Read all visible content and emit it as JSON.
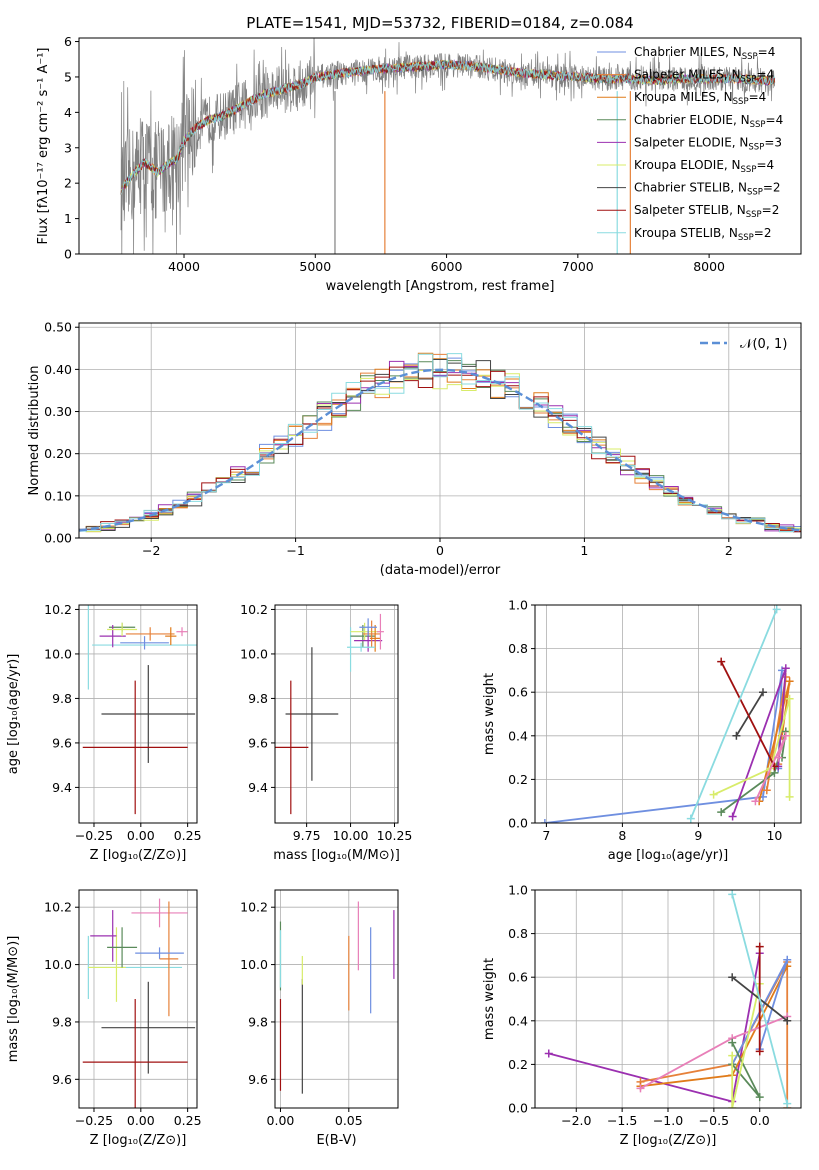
{
  "figure_title": "PLATE=1541, MJD=53732, FIBERID=0184, z=0.084",
  "colors": {
    "chabrier_miles": "#6f8fe0",
    "salpeter_miles": "#e6813a",
    "kroupa_miles": "#e07b1a",
    "chabrier_elodie": "#5a8a5a",
    "salpeter_elodie": "#9b30b0",
    "kroupa_elodie": "#d8ec6a",
    "chabrier_stelib": "#444444",
    "salpeter_stelib": "#a01010",
    "kroupa_stelib": "#8adbe0",
    "data_grey": "#808080",
    "pink": "#e87fb8",
    "normal_dashed": "#5b8fd6",
    "grid": "#b0b0b0"
  },
  "chart_data": [
    {
      "id": "spectrum",
      "type": "line",
      "title": "PLATE=1541, MJD=53732, FIBERID=0184, z=0.084",
      "xlabel": "wavelength [Angstrom, rest frame]",
      "ylabel": "Flux [fλ10⁻¹⁷ erg cm⁻² s⁻¹ A⁻¹]",
      "xlim": [
        3200,
        8700
      ],
      "ylim": [
        0,
        6.1
      ],
      "xticks": [
        4000,
        5000,
        6000,
        7000,
        8000
      ],
      "yticks": [
        0,
        1,
        2,
        3,
        4,
        5,
        6
      ],
      "grid": false,
      "legend_position": "top-right",
      "data_range": [
        3520,
        8500
      ],
      "model_shape": {
        "x": [
          3520,
          3600,
          3700,
          3800,
          3900,
          3950,
          4000,
          4100,
          4200,
          4300,
          4400,
          4500,
          4600,
          4700,
          4800,
          4900,
          5000,
          5200,
          5400,
          5600,
          5800,
          6000,
          6200,
          6400,
          6600,
          6800,
          7000,
          7200,
          7400,
          7600,
          7800,
          8000,
          8200,
          8400,
          8500
        ],
        "y": [
          1.8,
          2.2,
          2.6,
          2.3,
          2.6,
          2.7,
          3.2,
          3.6,
          3.8,
          3.9,
          4.1,
          4.3,
          4.5,
          4.6,
          4.7,
          4.8,
          5.0,
          5.1,
          5.2,
          5.25,
          5.3,
          5.35,
          5.3,
          5.2,
          5.1,
          5.05,
          5.0,
          4.95,
          4.95,
          4.9,
          4.95,
          4.95,
          4.95,
          4.9,
          4.9
        ]
      },
      "series": [
        {
          "name": "Chabrier MILES, N",
          "sub": "SSP",
          "suffix": "=4",
          "color_key": "chabrier_miles"
        },
        {
          "name": "Salpeter MILES, N",
          "sub": "SSP",
          "suffix": "=4",
          "color_key": "salpeter_miles"
        },
        {
          "name": "Kroupa MILES, N",
          "sub": "SSP",
          "suffix": "=4",
          "color_key": "kroupa_miles"
        },
        {
          "name": "Chabrier ELODIE, N",
          "sub": "SSP",
          "suffix": "=4",
          "color_key": "chabrier_elodie"
        },
        {
          "name": "Salpeter ELODIE, N",
          "sub": "SSP",
          "suffix": "=3",
          "color_key": "salpeter_elodie"
        },
        {
          "name": "Kroupa ELODIE, N",
          "sub": "SSP",
          "suffix": "=4",
          "color_key": "kroupa_elodie"
        },
        {
          "name": "Chabrier STELIB, N",
          "sub": "SSP",
          "suffix": "=2",
          "color_key": "chabrier_stelib"
        },
        {
          "name": "Salpeter STELIB, N",
          "sub": "SSP",
          "suffix": "=2",
          "color_key": "salpeter_stelib"
        },
        {
          "name": "Kroupa STELIB, N",
          "sub": "SSP",
          "suffix": "=2",
          "color_key": "kroupa_stelib"
        }
      ]
    },
    {
      "id": "residuals",
      "type": "line",
      "xlabel": "(data-model)/error",
      "ylabel": "Normed distribution",
      "xlim": [
        -2.5,
        2.5
      ],
      "ylim": [
        0,
        0.51
      ],
      "xticks": [
        -2,
        -1,
        0,
        1,
        2
      ],
      "yticks": [
        0.0,
        0.1,
        0.2,
        0.3,
        0.4,
        0.5
      ],
      "grid": true,
      "legend_position": "top-right",
      "legend_label": "𝒩(0, 1)",
      "normal": {
        "mean": 0,
        "sigma": 1
      }
    },
    {
      "id": "age_vs_Z",
      "type": "scatter",
      "xlabel": "Z [log₁₀(Z/Z⊙)]",
      "ylabel": "age  [log₁₀(age/yr)]",
      "xlim": [
        -0.33,
        0.3
      ],
      "ylim": [
        9.24,
        10.22
      ],
      "xticks": [
        -0.25,
        0.0,
        0.25
      ],
      "yticks": [
        9.4,
        9.6,
        9.8,
        10.0,
        10.2
      ],
      "grid": true,
      "points": [
        {
          "x": -0.28,
          "y": 10.04,
          "xerr": 0.0,
          "yerr": 0.2,
          "color_key": "kroupa_stelib"
        },
        {
          "x": 0.04,
          "y": 10.04,
          "xerr": 0.3,
          "yerr": 0.0,
          "color_key": "kroupa_stelib"
        },
        {
          "x": -0.1,
          "y": 10.12,
          "xerr": 0.07,
          "yerr": 0.02,
          "color_key": "chabrier_elodie"
        },
        {
          "x": -0.15,
          "y": 10.08,
          "xerr": 0.07,
          "yerr": 0.05,
          "color_key": "salpeter_elodie"
        },
        {
          "x": -0.1,
          "y": 10.11,
          "xerr": 0.08,
          "yerr": 0.03,
          "color_key": "kroupa_elodie"
        },
        {
          "x": 0.05,
          "y": 10.09,
          "xerr": 0.13,
          "yerr": 0.03,
          "color_key": "salpeter_miles"
        },
        {
          "x": 0.16,
          "y": 10.08,
          "xerr": 0.03,
          "yerr": 0.04,
          "color_key": "kroupa_miles"
        },
        {
          "x": 0.02,
          "y": 10.05,
          "xerr": 0.13,
          "yerr": 0.03,
          "color_key": "chabrier_miles"
        },
        {
          "x": 0.22,
          "y": 10.1,
          "xerr": 0.03,
          "yerr": 0.02,
          "color_key": "pink"
        },
        {
          "x": 0.04,
          "y": 9.73,
          "xerr": 0.25,
          "yerr": 0.22,
          "color_key": "chabrier_stelib"
        },
        {
          "x": -0.03,
          "y": 9.58,
          "xerr": 0.28,
          "yerr": 0.3,
          "color_key": "salpeter_stelib"
        }
      ]
    },
    {
      "id": "age_vs_mass",
      "type": "scatter",
      "xlabel": "mass [log₁₀(M/M⊙)]",
      "ylabel": "",
      "xlim": [
        9.57,
        10.27
      ],
      "ylim": [
        9.24,
        10.22
      ],
      "xticks": [
        9.75,
        10.0,
        10.25
      ],
      "yticks": [
        9.4,
        9.6,
        9.8,
        10.0,
        10.2
      ],
      "grid": true,
      "points": [
        {
          "x": 10.0,
          "y": 10.02,
          "xerr": 0.0,
          "yerr": 0.1,
          "color_key": "kroupa_stelib"
        },
        {
          "x": 10.07,
          "y": 10.08,
          "xerr": 0.07,
          "yerr": 0.05,
          "color_key": "chabrier_elodie"
        },
        {
          "x": 10.08,
          "y": 10.1,
          "xerr": 0.08,
          "yerr": 0.04,
          "color_key": "kroupa_elodie"
        },
        {
          "x": 10.1,
          "y": 10.06,
          "xerr": 0.08,
          "yerr": 0.05,
          "color_key": "salpeter_elodie"
        },
        {
          "x": 10.12,
          "y": 10.09,
          "xerr": 0.05,
          "yerr": 0.06,
          "color_key": "salpeter_miles"
        },
        {
          "x": 10.14,
          "y": 10.07,
          "xerr": 0.03,
          "yerr": 0.06,
          "color_key": "kroupa_miles"
        },
        {
          "x": 10.1,
          "y": 10.12,
          "xerr": 0.05,
          "yerr": 0.04,
          "color_key": "chabrier_miles"
        },
        {
          "x": 10.17,
          "y": 10.1,
          "xerr": 0.02,
          "yerr": 0.08,
          "color_key": "pink"
        },
        {
          "x": 9.78,
          "y": 9.73,
          "xerr": 0.15,
          "yerr": 0.3,
          "color_key": "chabrier_stelib"
        },
        {
          "x": 9.66,
          "y": 9.58,
          "xerr": 0.1,
          "yerr": 0.3,
          "color_key": "salpeter_stelib"
        },
        {
          "x": 10.06,
          "y": 10.03,
          "xerr": 0.08,
          "yerr": 0.02,
          "color_key": "kroupa_stelib"
        }
      ]
    },
    {
      "id": "massweight_vs_age",
      "type": "line",
      "xlabel": "age  [log₁₀(age/yr)]",
      "ylabel": "mass weight",
      "xlim": [
        6.85,
        10.35
      ],
      "ylim": [
        0,
        1.0
      ],
      "xticks": [
        7,
        8,
        9,
        10
      ],
      "yticks": [
        0.0,
        0.2,
        0.4,
        0.6,
        0.8,
        1.0
      ],
      "grid": true,
      "series": [
        {
          "color_key": "chabrier_miles",
          "points": [
            [
              6.98,
              0.0
            ],
            [
              9.85,
              0.12
            ],
            [
              10.1,
              0.7
            ],
            [
              10.05,
              0.25
            ]
          ]
        },
        {
          "color_key": "salpeter_miles",
          "points": [
            [
              9.9,
              0.15
            ],
            [
              10.15,
              0.67
            ],
            [
              10.05,
              0.27
            ]
          ]
        },
        {
          "color_key": "kroupa_miles",
          "points": [
            [
              9.8,
              0.1
            ],
            [
              10.2,
              0.65
            ],
            [
              10.1,
              0.4
            ]
          ]
        },
        {
          "color_key": "chabrier_elodie",
          "points": [
            [
              9.3,
              0.05
            ],
            [
              10.0,
              0.23
            ],
            [
              10.15,
              0.42
            ],
            [
              10.1,
              0.3
            ]
          ]
        },
        {
          "color_key": "salpeter_elodie",
          "points": [
            [
              9.45,
              0.03
            ],
            [
              10.15,
              0.71
            ],
            [
              10.05,
              0.26
            ]
          ]
        },
        {
          "color_key": "kroupa_elodie",
          "points": [
            [
              9.2,
              0.13
            ],
            [
              9.95,
              0.25
            ],
            [
              10.2,
              0.57
            ],
            [
              10.2,
              0.12
            ]
          ]
        },
        {
          "color_key": "chabrier_stelib",
          "points": [
            [
              9.5,
              0.4
            ],
            [
              9.85,
              0.6
            ]
          ]
        },
        {
          "color_key": "salpeter_stelib",
          "points": [
            [
              9.3,
              0.74
            ],
            [
              10.0,
              0.26
            ]
          ]
        },
        {
          "color_key": "kroupa_stelib",
          "points": [
            [
              8.9,
              0.02
            ],
            [
              10.03,
              0.98
            ]
          ]
        },
        {
          "color_key": "pink",
          "points": [
            [
              9.75,
              0.1
            ],
            [
              10.15,
              0.4
            ],
            [
              10.05,
              0.3
            ]
          ]
        }
      ]
    },
    {
      "id": "mass_vs_Z",
      "type": "scatter",
      "xlabel": "Z [log₁₀(Z/Z⊙)]",
      "ylabel": "mass [log₁₀(M/M⊙)]",
      "xlim": [
        -0.33,
        0.3
      ],
      "ylim": [
        9.5,
        10.26
      ],
      "xticks": [
        -0.25,
        0.0,
        0.25
      ],
      "yticks": [
        9.6,
        9.8,
        10.0,
        10.2
      ],
      "grid": true,
      "points": [
        {
          "x": -0.28,
          "y": 9.99,
          "xerr": 0.0,
          "yerr": 0.11,
          "color_key": "kroupa_stelib"
        },
        {
          "x": -0.03,
          "y": 9.99,
          "xerr": 0.25,
          "yerr": 0.0,
          "color_key": "kroupa_stelib"
        },
        {
          "x": -0.18,
          "y": 9.99,
          "xerr": 0.1,
          "yerr": 0.0,
          "color_key": "kroupa_elodie"
        },
        {
          "x": -0.13,
          "y": 10.0,
          "xerr": 0.0,
          "yerr": 0.13,
          "color_key": "kroupa_elodie"
        },
        {
          "x": -0.2,
          "y": 10.1,
          "xerr": 0.07,
          "yerr": 0.0,
          "color_key": "salpeter_elodie"
        },
        {
          "x": -0.15,
          "y": 10.1,
          "xerr": 0.0,
          "yerr": 0.09,
          "color_key": "salpeter_elodie"
        },
        {
          "x": -0.1,
          "y": 10.06,
          "xerr": 0.08,
          "yerr": 0.07,
          "color_key": "chabrier_elodie"
        },
        {
          "x": 0.1,
          "y": 10.18,
          "xerr": 0.15,
          "yerr": 0.05,
          "color_key": "pink"
        },
        {
          "x": 0.15,
          "y": 10.02,
          "xerr": 0.05,
          "yerr": 0.2,
          "color_key": "salpeter_miles"
        },
        {
          "x": 0.1,
          "y": 10.04,
          "xerr": 0.13,
          "yerr": 0.02,
          "color_key": "chabrier_miles"
        },
        {
          "x": 0.04,
          "y": 9.78,
          "xerr": 0.25,
          "yerr": 0.16,
          "color_key": "chabrier_stelib"
        },
        {
          "x": -0.03,
          "y": 9.66,
          "xerr": 0.28,
          "yerr": 0.22,
          "color_key": "salpeter_stelib"
        }
      ]
    },
    {
      "id": "mass_vs_ebv",
      "type": "scatter",
      "xlabel": "E(B-V)",
      "ylabel": "",
      "xlim": [
        -0.004,
        0.086
      ],
      "ylim": [
        9.5,
        10.26
      ],
      "xticks": [
        0.0,
        0.05
      ],
      "yticks": [
        9.6,
        9.8,
        10.0,
        10.2
      ],
      "grid": true,
      "points": [
        {
          "x": 0.0,
          "y": 10.03,
          "xerr": 0.0,
          "yerr": 0.12,
          "color_key": "chabrier_elodie"
        },
        {
          "x": 0.0,
          "y": 9.72,
          "xerr": 0.0,
          "yerr": 0.16,
          "color_key": "salpeter_stelib"
        },
        {
          "x": 0.0,
          "y": 10.02,
          "xerr": 0.0,
          "yerr": 0.1,
          "color_key": "kroupa_stelib"
        },
        {
          "x": 0.016,
          "y": 9.75,
          "xerr": 0.0,
          "yerr": 0.2,
          "color_key": "chabrier_stelib"
        },
        {
          "x": 0.016,
          "y": 9.98,
          "xerr": 0.0,
          "yerr": 0.05,
          "color_key": "kroupa_elodie"
        },
        {
          "x": 0.05,
          "y": 9.97,
          "xerr": 0.0,
          "yerr": 0.13,
          "color_key": "salpeter_miles"
        },
        {
          "x": 0.057,
          "y": 10.1,
          "xerr": 0.0,
          "yerr": 0.12,
          "color_key": "pink"
        },
        {
          "x": 0.066,
          "y": 9.98,
          "xerr": 0.0,
          "yerr": 0.15,
          "color_key": "chabrier_miles"
        },
        {
          "x": 0.083,
          "y": 10.07,
          "xerr": 0.0,
          "yerr": 0.12,
          "color_key": "salpeter_elodie"
        }
      ]
    },
    {
      "id": "massweight_vs_Z",
      "type": "line",
      "xlabel": "Z [log₁₀(Z/Z⊙)]",
      "ylabel": "mass weight",
      "xlim": [
        -2.45,
        0.45
      ],
      "ylim": [
        0,
        1.0
      ],
      "xticks": [
        -2.0,
        -1.5,
        -1.0,
        -0.5,
        0.0
      ],
      "yticks": [
        0.0,
        0.2,
        0.4,
        0.6,
        0.8,
        1.0
      ],
      "grid": true,
      "series": [
        {
          "color_key": "salpeter_elodie",
          "points": [
            [
              -2.3,
              0.25
            ],
            [
              -0.3,
              0.03
            ],
            [
              0.0,
              0.71
            ]
          ]
        },
        {
          "color_key": "salpeter_miles",
          "points": [
            [
              -1.3,
              0.12
            ],
            [
              -0.3,
              0.2
            ],
            [
              0.3,
              0.67
            ],
            [
              0.3,
              0.0
            ]
          ]
        },
        {
          "color_key": "kroupa_miles",
          "points": [
            [
              -1.3,
              0.1
            ],
            [
              -0.3,
              0.15
            ],
            [
              0.3,
              0.65
            ]
          ]
        },
        {
          "color_key": "chabrier_miles",
          "points": [
            [
              -0.3,
              0.2
            ],
            [
              0.3,
              0.68
            ],
            [
              0.0,
              0.27
            ]
          ]
        },
        {
          "color_key": "pink",
          "points": [
            [
              -1.3,
              0.09
            ],
            [
              -0.3,
              0.32
            ],
            [
              0.3,
              0.42
            ]
          ]
        },
        {
          "color_key": "chabrier_elodie",
          "points": [
            [
              -0.3,
              0.3
            ],
            [
              0.0,
              0.05
            ],
            [
              -0.3,
              0.2
            ]
          ]
        },
        {
          "color_key": "kroupa_elodie",
          "points": [
            [
              -0.3,
              0.24
            ],
            [
              -0.3,
              0.0
            ],
            [
              0.0,
              0.57
            ]
          ]
        },
        {
          "color_key": "chabrier_stelib",
          "points": [
            [
              -0.3,
              0.6
            ],
            [
              0.3,
              0.4
            ]
          ]
        },
        {
          "color_key": "salpeter_stelib",
          "points": [
            [
              0.0,
              0.74
            ],
            [
              0.0,
              0.26
            ]
          ]
        },
        {
          "color_key": "kroupa_stelib",
          "points": [
            [
              -0.3,
              0.98
            ],
            [
              0.3,
              0.02
            ]
          ]
        }
      ]
    }
  ]
}
